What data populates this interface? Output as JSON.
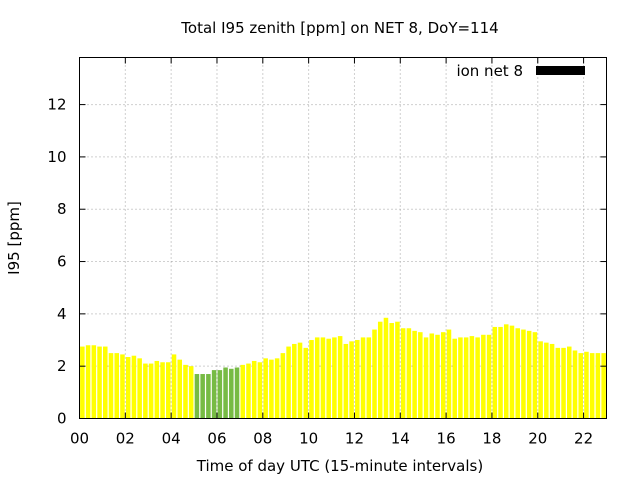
{
  "chart_data": {
    "type": "bar",
    "title": "Total I95 zenith [ppm] on NET 8, DoY=114",
    "xlabel": "Time of day UTC (15-minute intervals)",
    "ylabel": "I95 [ppm]",
    "xlim": [
      0,
      23
    ],
    "ylim": [
      0,
      13.8
    ],
    "xticks": [
      "00",
      "02",
      "04",
      "06",
      "08",
      "10",
      "12",
      "14",
      "16",
      "18",
      "20",
      "22"
    ],
    "yticks": [
      "0",
      "2",
      "4",
      "6",
      "8",
      "10",
      "12"
    ],
    "grid": true,
    "legend_position": "top-right",
    "series": [
      {
        "name": "ion net 8",
        "legend_color": "#000000",
        "yellow_color": "#ffff00",
        "green_color": "#77bb44",
        "interval_hours": 0.25,
        "values": [
          2.75,
          2.8,
          2.8,
          2.75,
          2.75,
          2.5,
          2.5,
          2.45,
          2.35,
          2.4,
          2.3,
          2.1,
          2.1,
          2.2,
          2.15,
          2.15,
          2.45,
          2.25,
          2.05,
          2.0,
          1.7,
          1.7,
          1.7,
          1.85,
          1.85,
          1.95,
          1.9,
          1.95,
          2.05,
          2.1,
          2.2,
          2.15,
          2.3,
          2.25,
          2.3,
          2.5,
          2.75,
          2.85,
          2.9,
          2.7,
          3.0,
          3.1,
          3.1,
          3.05,
          3.1,
          3.15,
          2.85,
          2.95,
          3.0,
          3.1,
          3.1,
          3.4,
          3.7,
          3.85,
          3.65,
          3.7,
          3.45,
          3.45,
          3.35,
          3.3,
          3.1,
          3.25,
          3.2,
          3.3,
          3.4,
          3.05,
          3.1,
          3.1,
          3.15,
          3.1,
          3.2,
          3.2,
          3.5,
          3.5,
          3.6,
          3.55,
          3.45,
          3.4,
          3.35,
          3.3,
          2.95,
          2.9,
          2.85,
          2.7,
          2.7,
          2.75,
          2.6,
          2.5,
          2.55,
          2.5,
          2.5,
          2.5
        ],
        "green_range": [
          20,
          27
        ]
      }
    ]
  }
}
